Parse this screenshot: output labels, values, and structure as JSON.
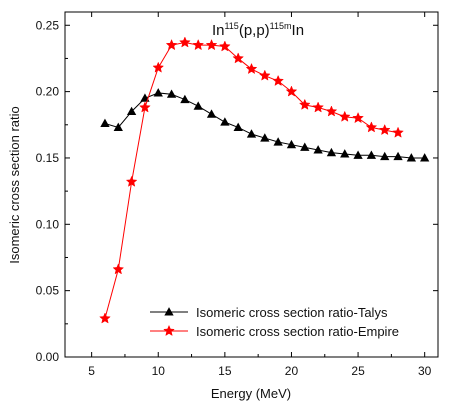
{
  "chart_data": {
    "type": "line",
    "title": {
      "parts": [
        {
          "text": "In",
          "sup": false
        },
        {
          "text": "115",
          "sup": true
        },
        {
          "text": "(p,p)",
          "sup": false
        },
        {
          "text": "115m",
          "sup": true
        },
        {
          "text": "In",
          "sup": false
        }
      ]
    },
    "xlabel": "Energy (MeV)",
    "ylabel": "Isomeric cross section ratio",
    "xlim": [
      3,
      31
    ],
    "ylim": [
      0,
      0.26
    ],
    "xticks": [
      5,
      10,
      15,
      20,
      25,
      30
    ],
    "xtick_labels": [
      "5",
      "10",
      "15",
      "20",
      "25",
      "30"
    ],
    "yticks": [
      0.0,
      0.05,
      0.1,
      0.15,
      0.2,
      0.25
    ],
    "ytick_labels": [
      "0.00",
      "0.05",
      "0.10",
      "0.15",
      "0.20",
      "0.25"
    ],
    "grid": false,
    "legend_position": "bottom-center",
    "series": [
      {
        "name": "Isomeric cross section ratio-Talys",
        "color": "#000000",
        "marker": "triangle",
        "x": [
          6,
          7,
          8,
          9,
          10,
          11,
          12,
          13,
          14,
          15,
          16,
          17,
          18,
          19,
          20,
          21,
          22,
          23,
          24,
          25,
          26,
          27,
          28,
          29,
          30
        ],
        "y": [
          0.176,
          0.173,
          0.185,
          0.195,
          0.199,
          0.198,
          0.194,
          0.189,
          0.183,
          0.177,
          0.173,
          0.168,
          0.165,
          0.162,
          0.16,
          0.158,
          0.156,
          0.154,
          0.153,
          0.152,
          0.152,
          0.151,
          0.151,
          0.15,
          0.15
        ]
      },
      {
        "name": "Isomeric cross section ratio-Empire",
        "color": "#ff0000",
        "marker": "star",
        "x": [
          6,
          7,
          8,
          9,
          10,
          11,
          12,
          13,
          14,
          15,
          16,
          17,
          18,
          19,
          20,
          21,
          22,
          23,
          24,
          25,
          26,
          27,
          28
        ],
        "y": [
          0.029,
          0.066,
          0.132,
          0.188,
          0.218,
          0.235,
          0.237,
          0.235,
          0.235,
          0.234,
          0.225,
          0.217,
          0.212,
          0.208,
          0.2,
          0.19,
          0.188,
          0.185,
          0.181,
          0.18,
          0.173,
          0.171,
          0.169
        ]
      }
    ]
  }
}
